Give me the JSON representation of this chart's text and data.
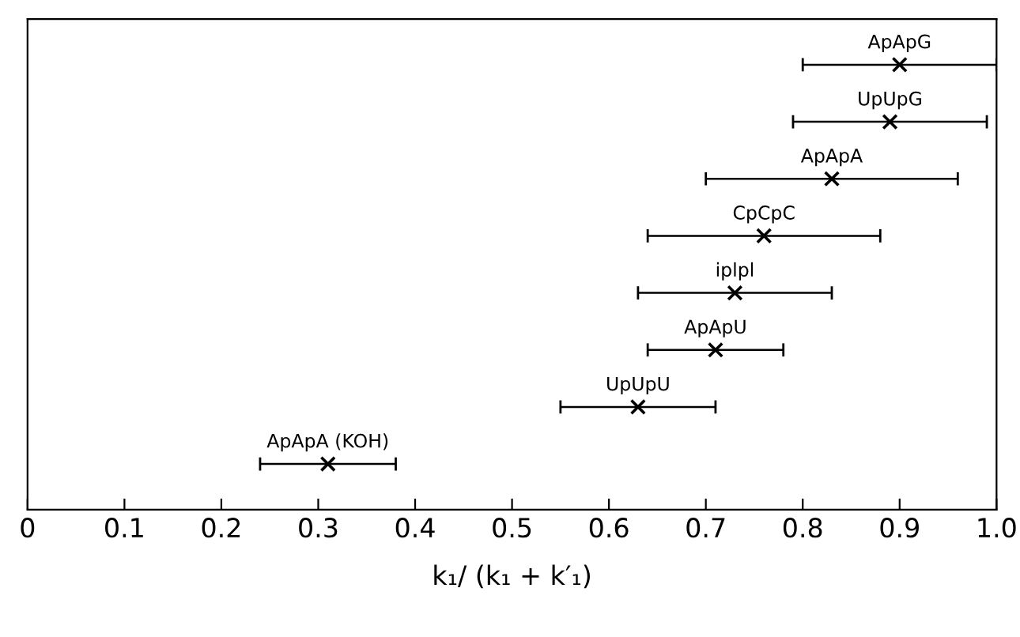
{
  "chart_data": {
    "type": "scatter",
    "orientation": "horizontal",
    "xlabel": "k₁/ (k₁ + k′₁)",
    "categories": [
      null,
      null,
      null,
      null,
      null,
      null,
      null,
      null
    ],
    "series": [
      {
        "name": "ApApG",
        "color": "#000000",
        "values": [
          0.9,
          null,
          null,
          null,
          null,
          null,
          null,
          null
        ],
        "errors": [
          [
            0.8,
            1.0
          ],
          null,
          null,
          null,
          null,
          null,
          null,
          null
        ]
      },
      {
        "name": "UpUpG",
        "color": "#000000",
        "values": [
          null,
          0.89,
          null,
          null,
          null,
          null,
          null,
          null
        ],
        "errors": [
          null,
          [
            0.79,
            0.99
          ],
          null,
          null,
          null,
          null,
          null,
          null
        ]
      },
      {
        "name": "ApApA",
        "color": "#000000",
        "values": [
          null,
          null,
          0.83,
          null,
          null,
          null,
          null,
          null
        ],
        "errors": [
          null,
          null,
          [
            0.7,
            0.96
          ],
          null,
          null,
          null,
          null,
          null
        ]
      },
      {
        "name": "CpCpC",
        "color": "#000000",
        "values": [
          null,
          null,
          null,
          0.76,
          null,
          null,
          null,
          null
        ],
        "errors": [
          null,
          null,
          null,
          [
            0.64,
            0.88
          ],
          null,
          null,
          null,
          null
        ]
      },
      {
        "name": "iplpl",
        "color": "#000000",
        "values": [
          null,
          null,
          null,
          null,
          0.73,
          null,
          null,
          null
        ],
        "errors": [
          null,
          null,
          null,
          null,
          [
            0.63,
            0.83
          ],
          null,
          null,
          null
        ]
      },
      {
        "name": "ApApU",
        "color": "#000000",
        "values": [
          null,
          null,
          null,
          null,
          null,
          0.71,
          null,
          null
        ],
        "errors": [
          null,
          null,
          null,
          null,
          null,
          [
            0.64,
            0.78
          ],
          null,
          null
        ]
      },
      {
        "name": "UpUpU",
        "color": "#000000",
        "values": [
          null,
          null,
          null,
          null,
          null,
          null,
          0.63,
          null
        ],
        "errors": [
          null,
          null,
          null,
          null,
          null,
          null,
          [
            0.55,
            0.71
          ],
          null
        ]
      },
      {
        "name": "ApApA (KOH)",
        "color": "#000000",
        "values": [
          null,
          null,
          null,
          null,
          null,
          null,
          null,
          0.31
        ],
        "errors": [
          null,
          null,
          null,
          null,
          null,
          null,
          null,
          [
            0.24,
            0.38
          ]
        ]
      }
    ],
    "marker": "cross",
    "xlim": [
      0,
      1
    ],
    "xticks": [
      0,
      0.1,
      0.2,
      0.3,
      0.4,
      0.5,
      0.6,
      0.7,
      0.8,
      0.9,
      {
        "value": 1,
        "label": "1.0"
      }
    ],
    "grid": false,
    "legend": false
  }
}
